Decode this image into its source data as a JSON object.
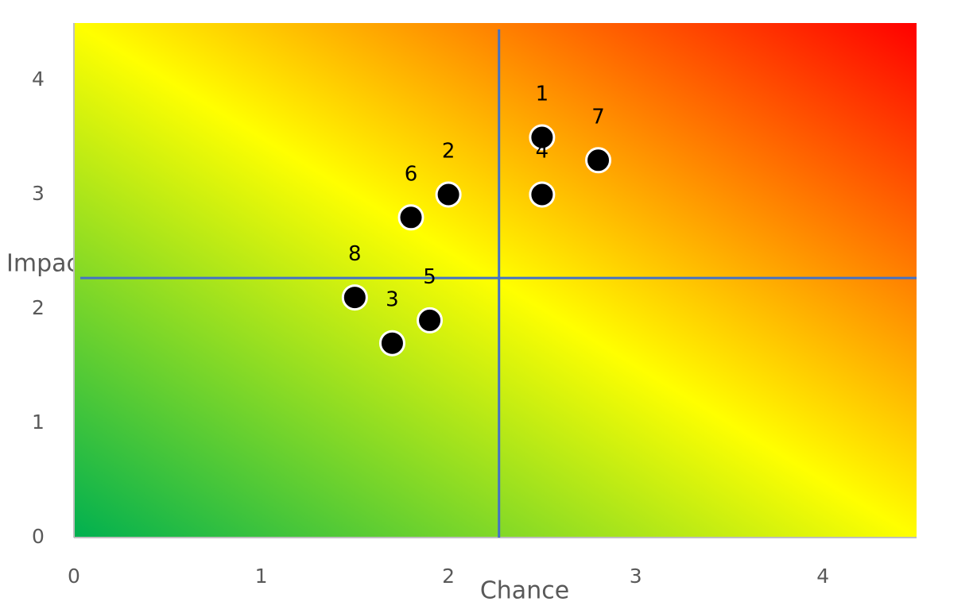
{
  "chart_data": {
    "type": "scatter",
    "x_label": "Chance",
    "y_label": "Impact",
    "xlim": [
      0,
      4.5
    ],
    "ylim": [
      0,
      4.5
    ],
    "xticks": [
      0,
      1,
      2,
      3,
      4
    ],
    "yticks": [
      0,
      1,
      2,
      3,
      4
    ],
    "series": [
      {
        "color": "#000000",
        "x": [
          2.5,
          2.0,
          1.7,
          2.5,
          1.9,
          1.8,
          2.8,
          1.5
        ],
        "values": [
          3.5,
          3.0,
          1.7,
          3.0,
          1.9,
          2.8,
          3.3,
          2.1
        ],
        "labels": [
          "1",
          "2",
          "3",
          "4",
          "5",
          "6",
          "7",
          "8"
        ]
      }
    ],
    "reference_lines": {
      "x": 2.27,
      "y": 2.27,
      "color": "#4472c4"
    },
    "background_gradient": [
      "#00b050",
      "#ffff00",
      "#ff0000"
    ]
  }
}
